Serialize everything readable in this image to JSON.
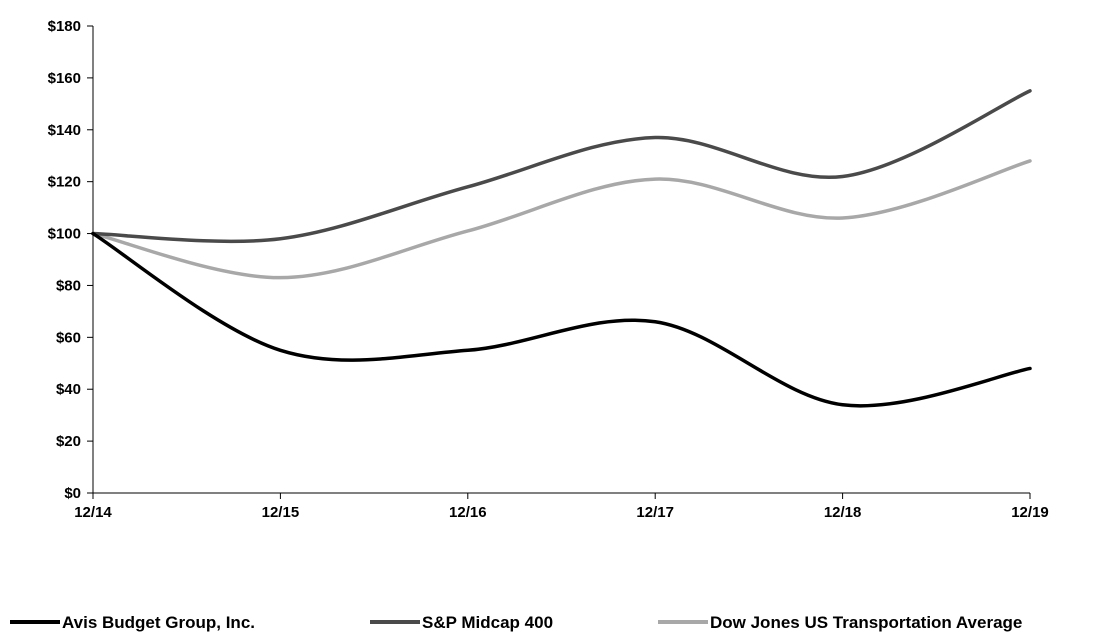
{
  "chart_data": {
    "type": "line",
    "categories": [
      "12/14",
      "12/15",
      "12/16",
      "12/17",
      "12/18",
      "12/19"
    ],
    "y_ticks": [
      "$0",
      "$20",
      "$40",
      "$60",
      "$80",
      "$100",
      "$120",
      "$140",
      "$160",
      "$180"
    ],
    "ylim": [
      0,
      180
    ],
    "grid": false,
    "legend_position": "bottom",
    "series": [
      {
        "name": "Avis Budget Group, Inc.",
        "values": [
          100,
          55,
          55,
          66,
          34,
          48
        ],
        "color": "#000000"
      },
      {
        "name": "S&P Midcap 400",
        "values": [
          100,
          98,
          118,
          137,
          122,
          155
        ],
        "color": "#4a4a4a"
      },
      {
        "name": "Dow Jones US Transportation Average",
        "values": [
          100,
          83,
          101,
          121,
          106,
          128
        ],
        "color": "#a8a8a8"
      }
    ]
  }
}
